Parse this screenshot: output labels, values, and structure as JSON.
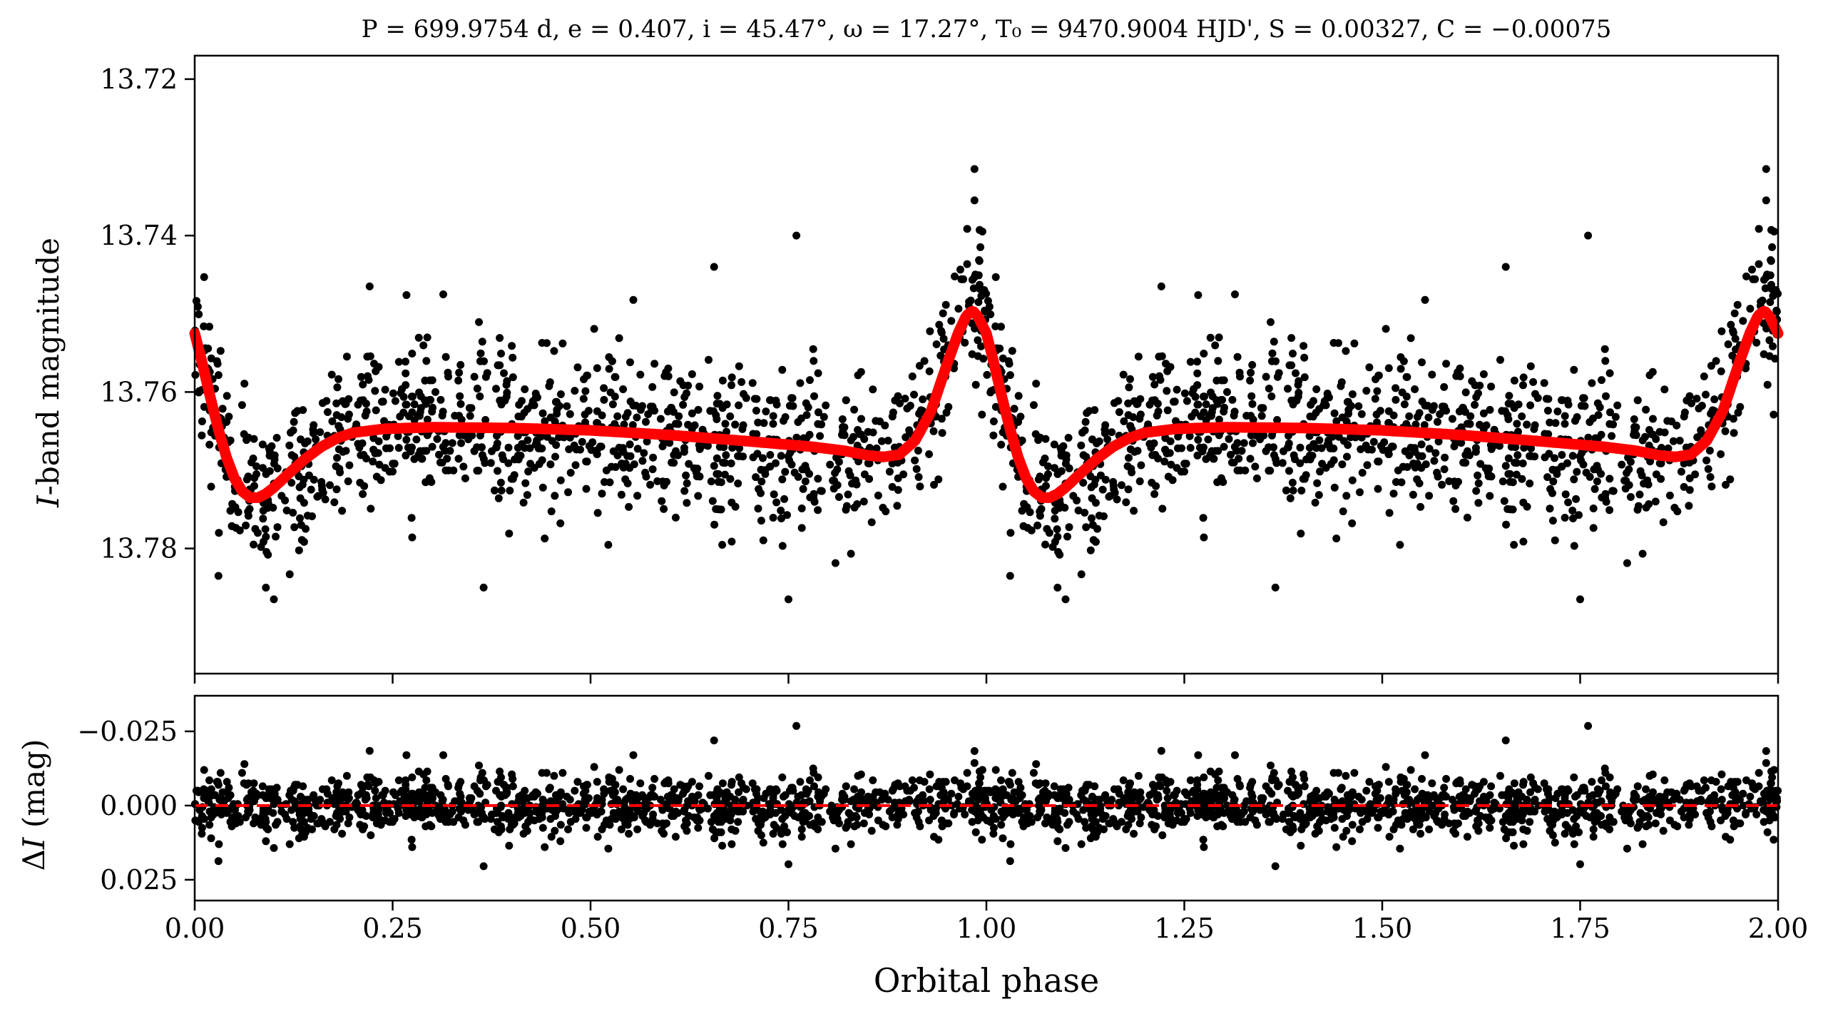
{
  "chart_data": [
    {
      "type": "scatter",
      "panel": "top",
      "title": "P = 699.9754 d, e = 0.407, i = 45.47°, ω = 17.27°, T₀ = 9470.9004 HJD', S = 0.00327, C = −0.00075",
      "xlabel": "",
      "ylabel": "I-band magnitude",
      "ylabel_italic_part": "I",
      "ylabel_rest": "-band magnitude",
      "xlim": [
        0.0,
        2.0
      ],
      "ylim": [
        13.796,
        13.717
      ],
      "y_inverted": true,
      "yticks": [
        13.72,
        13.74,
        13.76,
        13.78
      ],
      "ytick_labels": [
        "13.72",
        "13.74",
        "13.76",
        "13.78"
      ],
      "xticks": [
        0.0,
        0.25,
        0.5,
        0.75,
        1.0,
        1.25,
        1.5,
        1.75,
        2.0
      ],
      "grid": false,
      "series": [
        {
          "role": "observations",
          "color": "#000000",
          "marker": "circle",
          "n_points_per_cycle": 1100,
          "mean_level": 13.7645,
          "scatter_sigma": 0.0052,
          "outliers": [
            {
              "x": 0.985,
              "y": 13.7315
            },
            {
              "x": 0.985,
              "y": 13.7355
            },
            {
              "x": 0.76,
              "y": 13.74
            },
            {
              "x": 0.656,
              "y": 13.744
            },
            {
              "x": 0.221,
              "y": 13.7465
            },
            {
              "x": 0.75,
              "y": 13.7865
            },
            {
              "x": 0.1,
              "y": 13.7865
            },
            {
              "x": 0.365,
              "y": 13.785
            },
            {
              "x": 0.03,
              "y": 13.7835
            }
          ]
        },
        {
          "role": "model",
          "color": "#ff0000",
          "linewidth": "thick",
          "model_curve": [
            [
              0.0,
              13.7525
            ],
            [
              0.01,
              13.7565
            ],
            [
              0.02,
              13.7608
            ],
            [
              0.03,
              13.7648
            ],
            [
              0.04,
              13.7683
            ],
            [
              0.05,
              13.771
            ],
            [
              0.06,
              13.7727
            ],
            [
              0.07,
              13.7735
            ],
            [
              0.08,
              13.7735
            ],
            [
              0.09,
              13.773
            ],
            [
              0.1,
              13.7722
            ],
            [
              0.12,
              13.7703
            ],
            [
              0.14,
              13.7685
            ],
            [
              0.16,
              13.767
            ],
            [
              0.18,
              13.7659
            ],
            [
              0.2,
              13.7652
            ],
            [
              0.24,
              13.7647
            ],
            [
              0.3,
              13.7645
            ],
            [
              0.4,
              13.7646
            ],
            [
              0.5,
              13.7649
            ],
            [
              0.6,
              13.7655
            ],
            [
              0.7,
              13.7663
            ],
            [
              0.78,
              13.767
            ],
            [
              0.82,
              13.7675
            ],
            [
              0.85,
              13.7681
            ],
            [
              0.87,
              13.7683
            ],
            [
              0.89,
              13.768
            ],
            [
              0.91,
              13.7662
            ],
            [
              0.93,
              13.7625
            ],
            [
              0.95,
              13.7565
            ],
            [
              0.965,
              13.7523
            ],
            [
              0.975,
              13.7502
            ],
            [
              0.983,
              13.7496
            ],
            [
              0.99,
              13.7505
            ],
            [
              1.0,
              13.7525
            ],
            [
              1.01,
              13.7565
            ],
            [
              1.02,
              13.7608
            ],
            [
              1.03,
              13.7648
            ],
            [
              1.04,
              13.7683
            ],
            [
              1.05,
              13.771
            ],
            [
              1.06,
              13.7727
            ],
            [
              1.07,
              13.7735
            ],
            [
              1.08,
              13.7735
            ],
            [
              1.09,
              13.773
            ],
            [
              1.1,
              13.7722
            ],
            [
              1.12,
              13.7703
            ],
            [
              1.14,
              13.7685
            ],
            [
              1.16,
              13.767
            ],
            [
              1.18,
              13.7659
            ],
            [
              1.2,
              13.7652
            ],
            [
              1.24,
              13.7647
            ],
            [
              1.3,
              13.7645
            ],
            [
              1.4,
              13.7646
            ],
            [
              1.5,
              13.7649
            ],
            [
              1.6,
              13.7655
            ],
            [
              1.7,
              13.7663
            ],
            [
              1.78,
              13.767
            ],
            [
              1.82,
              13.7675
            ],
            [
              1.85,
              13.7681
            ],
            [
              1.87,
              13.7683
            ],
            [
              1.89,
              13.768
            ],
            [
              1.91,
              13.7662
            ],
            [
              1.93,
              13.7625
            ],
            [
              1.95,
              13.7565
            ],
            [
              1.965,
              13.7523
            ],
            [
              1.975,
              13.7502
            ],
            [
              1.983,
              13.7496
            ],
            [
              1.99,
              13.7505
            ],
            [
              2.0,
              13.7525
            ]
          ]
        }
      ]
    },
    {
      "type": "scatter",
      "panel": "bottom",
      "xlabel": "Orbital phase",
      "ylabel": "ΔI (mag)",
      "ylabel_delta": "Δ",
      "ylabel_italic_part": "I",
      "ylabel_rest": " (mag)",
      "xlim": [
        0.0,
        2.0
      ],
      "ylim": [
        0.032,
        -0.037
      ],
      "y_inverted": true,
      "yticks": [
        -0.025,
        0.0,
        0.025
      ],
      "ytick_labels": [
        "−0.025",
        "0.000",
        "0.025"
      ],
      "xticks": [
        0.0,
        0.25,
        0.5,
        0.75,
        1.0,
        1.25,
        1.5,
        1.75,
        2.0
      ],
      "xtick_labels": [
        "0.00",
        "0.25",
        "0.50",
        "0.75",
        "1.00",
        "1.25",
        "1.50",
        "1.75",
        "2.00"
      ],
      "grid": false,
      "series": [
        {
          "role": "residuals",
          "color": "#000000",
          "marker": "circle",
          "mean_level": 0.0,
          "scatter_sigma": 0.0052
        },
        {
          "role": "zero-line",
          "color": "#ff0000",
          "linestyle": "dashed",
          "y": 0.0
        }
      ]
    }
  ]
}
